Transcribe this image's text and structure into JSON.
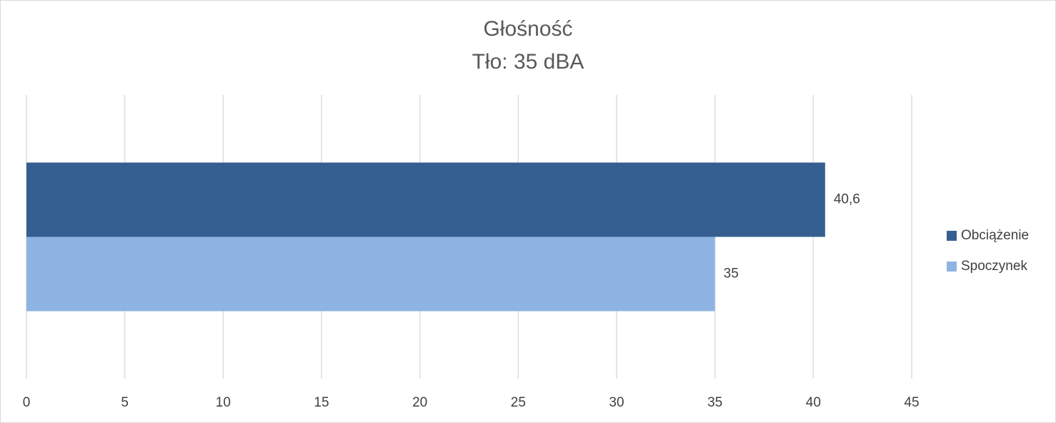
{
  "chart_data": {
    "type": "hbar",
    "title": "Głośność",
    "subtitle": "Tło: 35 dBA",
    "categories": [
      null
    ],
    "series": [
      {
        "name": "Obciążenie",
        "color": "#365f91",
        "values": [
          40.6
        ],
        "value_labels": [
          "40,6"
        ]
      },
      {
        "name": "Spoczynek",
        "color": "#8eb4e3",
        "values": [
          35
        ]
      }
    ],
    "xlim": [
      0,
      45
    ],
    "xticks": [
      0,
      5,
      10,
      15,
      20,
      25,
      30,
      35,
      40,
      45
    ],
    "grid": true,
    "legend": "right"
  }
}
